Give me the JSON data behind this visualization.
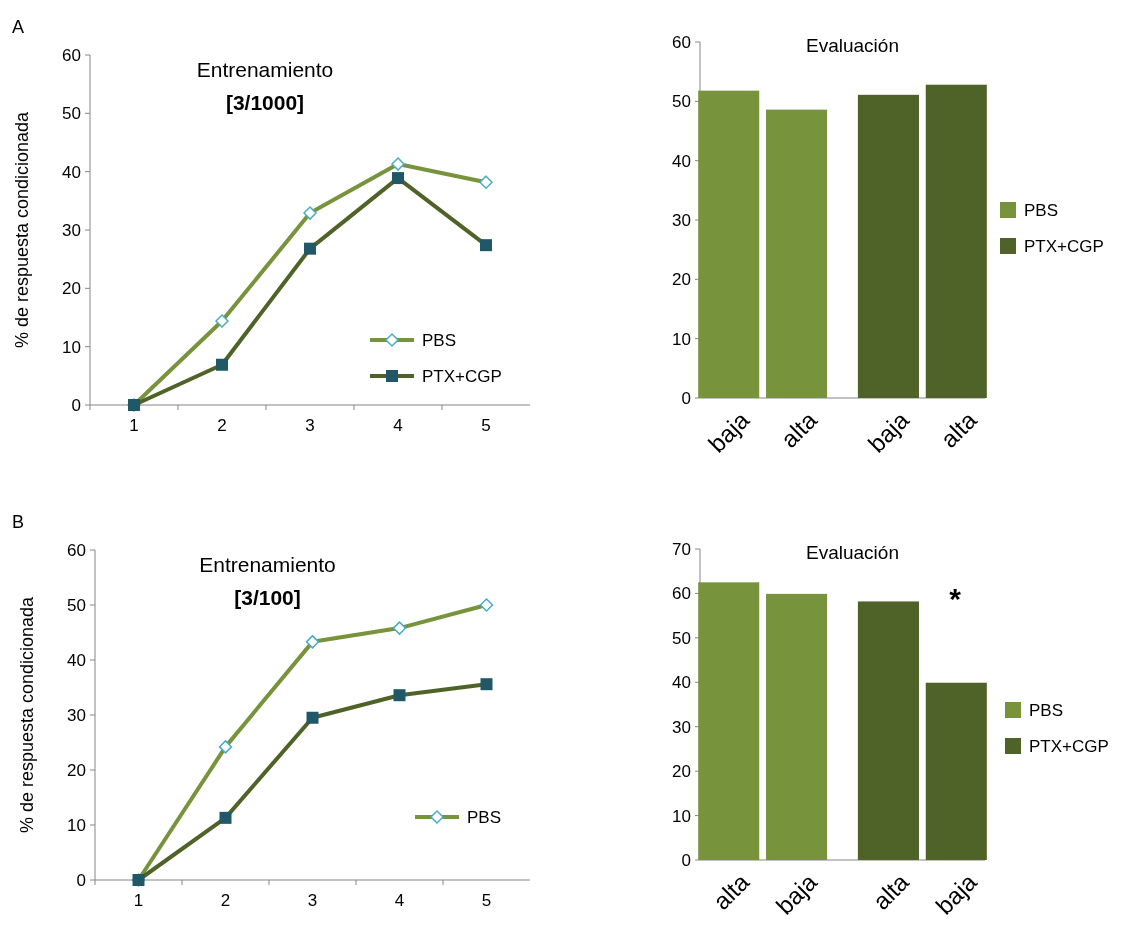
{
  "chart_data": [
    {
      "type": "line",
      "title": "Entrenamiento",
      "subtitle": "[3/1000]",
      "ylabel": "% de respuesta condicionada",
      "annotations": [
        "A"
      ],
      "categories": [
        "1",
        "2",
        "3",
        "4",
        "5"
      ],
      "ylim": [
        0,
        60
      ],
      "yticks": [
        0,
        10,
        20,
        30,
        40,
        50,
        60
      ],
      "legend": "bottom right",
      "grid": false,
      "series": [
        {
          "name": "PBS",
          "color": "#77933c",
          "marker": "diamond",
          "values": [
            0,
            14.4,
            32.9,
            41.3,
            38.2
          ]
        },
        {
          "name": "PTX+CGP",
          "color": "#4f6228",
          "marker": "square",
          "values": [
            0,
            6.9,
            26.8,
            38.9,
            27.4
          ]
        }
      ]
    },
    {
      "type": "bar",
      "title": "Evaluación",
      "categories": [
        "baja",
        "alta",
        "baja",
        "alta"
      ],
      "ylim": [
        0,
        60
      ],
      "yticks": [
        0,
        10,
        20,
        30,
        40,
        50,
        60
      ],
      "legend": "right",
      "grid": false,
      "series": [
        {
          "name": "PBS",
          "color": "#77933c",
          "values": [
            51.8,
            48.6,
            null,
            null
          ]
        },
        {
          "name": "PTX+CGP",
          "color": "#4f6228",
          "values": [
            null,
            null,
            51.1,
            52.8
          ]
        }
      ]
    },
    {
      "type": "line",
      "title": "Entrenamiento",
      "subtitle": "[3/100]",
      "ylabel": "% de respuesta condicionada",
      "annotations": [
        "B"
      ],
      "categories": [
        "1",
        "2",
        "3",
        "4",
        "5"
      ],
      "ylim": [
        0,
        60
      ],
      "yticks": [
        0,
        10,
        20,
        30,
        40,
        50,
        60
      ],
      "legend": "bottom right",
      "grid": false,
      "series": [
        {
          "name": "PBS",
          "color": "#77933c",
          "marker": "diamond",
          "values": [
            0,
            24.2,
            43.3,
            45.8,
            50
          ]
        },
        {
          "color": "#4f6228",
          "marker": "square",
          "values": [
            0,
            11.3,
            29.5,
            33.6,
            35.6
          ]
        }
      ]
    },
    {
      "type": "bar",
      "title": "Evaluación",
      "categories": [
        "alta",
        "baja",
        "alta",
        "baja"
      ],
      "ylim": [
        0,
        70
      ],
      "yticks": [
        0,
        10,
        20,
        30,
        40,
        50,
        60,
        70
      ],
      "legend": "right",
      "grid": false,
      "annotations": [
        "*"
      ],
      "series": [
        {
          "name": "PBS",
          "color": "#77933c",
          "values": [
            62.5,
            59.9,
            null,
            null
          ]
        },
        {
          "name": "PTX+CGP",
          "color": "#4f6228",
          "values": [
            null,
            null,
            58.2,
            39.9
          ]
        }
      ]
    }
  ]
}
